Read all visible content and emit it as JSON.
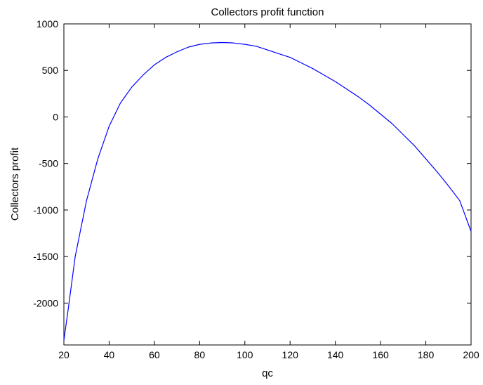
{
  "chart_data": {
    "type": "line",
    "title": "Collectors profit function",
    "xlabel": "qc",
    "ylabel": "Collectors profit",
    "xlim": [
      20,
      200
    ],
    "ylim": [
      -2450,
      1000
    ],
    "xticks": [
      20,
      40,
      60,
      80,
      100,
      120,
      140,
      160,
      180,
      200
    ],
    "yticks": [
      -2000,
      -1500,
      -1000,
      -500,
      0,
      500,
      1000
    ],
    "grid": false,
    "colors": {
      "line": "#0000ff",
      "axes": "#000000",
      "background": "#ffffff"
    },
    "series": [
      {
        "x": [
          20,
          22,
          25,
          30,
          35,
          40,
          45,
          50,
          55,
          60,
          65,
          70,
          75,
          80,
          85,
          90,
          95,
          100,
          105,
          110,
          115,
          120,
          125,
          130,
          135,
          140,
          145,
          150,
          155,
          160,
          165,
          170,
          175,
          180,
          185,
          190,
          195,
          200
        ],
        "values": [
          -2400,
          -2050,
          -1500,
          -900,
          -450,
          -100,
          150,
          320,
          450,
          560,
          640,
          700,
          750,
          780,
          795,
          800,
          795,
          780,
          760,
          720,
          680,
          640,
          580,
          520,
          450,
          380,
          300,
          220,
          130,
          30,
          -70,
          -190,
          -310,
          -450,
          -590,
          -740,
          -900,
          -1230
        ]
      }
    ]
  }
}
